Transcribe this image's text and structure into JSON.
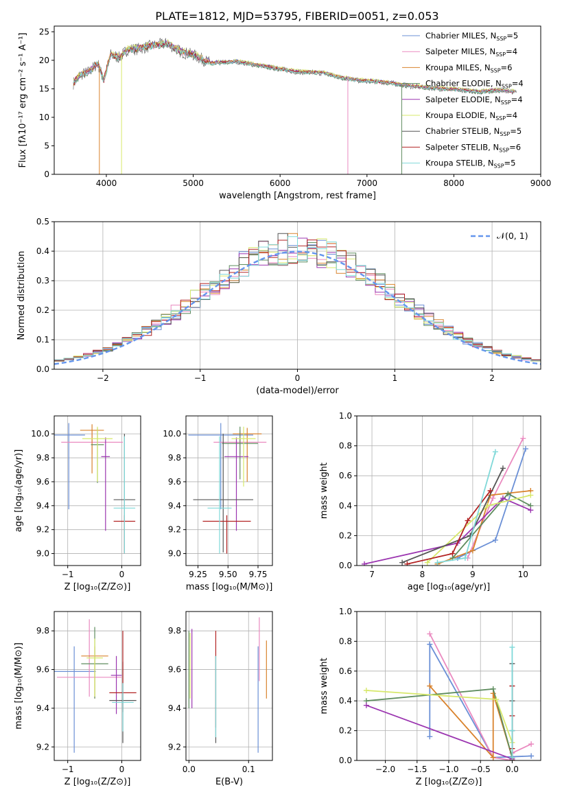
{
  "figure_title": "PLATE=1812, MJD=53795, FIBERID=0051, z=0.053",
  "model_colors": [
    "#6a8fd6",
    "#ea8ac0",
    "#d9822b",
    "#5e8c5e",
    "#9b35b0",
    "#d7e86a",
    "#555555",
    "#b22222",
    "#7fd8d8"
  ],
  "legend_labels": [
    [
      "Chabrier MILES, N",
      "SSP",
      "=5"
    ],
    [
      "Salpeter MILES, N",
      "SSP",
      "=4"
    ],
    [
      "Kroupa MILES, N",
      "SSP",
      "=6"
    ],
    [
      "Chabrier ELODIE, N",
      "SSP",
      "=4"
    ],
    [
      "Salpeter ELODIE, N",
      "SSP",
      "=4"
    ],
    [
      "Kroupa ELODIE, N",
      "SSP",
      "=4"
    ],
    [
      "Chabrier STELIB, N",
      "SSP",
      "=5"
    ],
    [
      "Salpeter STELIB, N",
      "SSP",
      "=6"
    ],
    [
      "Kroupa STELIB, N",
      "SSP",
      "=5"
    ]
  ],
  "chart_data": [
    {
      "id": "spectrum",
      "type": "line",
      "xlabel": "wavelength [Angstrom, rest frame]",
      "ylabel": "Flux [fλ10⁻¹⁷ erg cm⁻² s⁻¹ A⁻¹]",
      "xlim": [
        3400,
        9000
      ],
      "ylim": [
        0,
        26
      ],
      "xticks": [
        4000,
        5000,
        6000,
        7000,
        8000,
        9000
      ],
      "yticks": [
        0,
        5,
        10,
        15,
        20,
        25
      ],
      "grid": false,
      "legend_position": "upper-right",
      "data_x": [
        3620,
        3700,
        3800,
        3900,
        3970,
        4050,
        4150,
        4250,
        4350,
        4500,
        4700,
        4860,
        5000,
        5200,
        5500,
        5800,
        6000,
        6200,
        6500,
        6700,
        6900,
        7100,
        7300,
        7500,
        7700,
        7900,
        8100,
        8300,
        8500,
        8700
      ],
      "data_y": [
        16.0,
        17.5,
        18.0,
        19.5,
        16.5,
        21.0,
        20.5,
        22.0,
        22.0,
        22.5,
        23.0,
        21.5,
        21.0,
        19.5,
        19.8,
        19.0,
        18.5,
        18.0,
        17.8,
        17.0,
        16.5,
        16.3,
        16.0,
        15.5,
        15.2,
        15.0,
        14.8,
        14.5,
        14.8,
        14.5
      ],
      "model_spreads": [
        0.3,
        -0.2,
        0.1,
        -0.4,
        0.2,
        0.5,
        -0.1,
        0.0,
        -0.3
      ]
    },
    {
      "id": "residual-histogram",
      "type": "histogram",
      "xlabel": "(data-model)/error",
      "ylabel": "Normed distribution",
      "xlim": [
        -2.5,
        2.5
      ],
      "ylim": [
        0,
        0.5
      ],
      "xticks": [
        -2,
        -1,
        0,
        1,
        2
      ],
      "yticks": [
        0.0,
        0.1,
        0.2,
        0.3,
        0.4,
        0.5
      ],
      "grid": true,
      "legend": "𝒩(0, 1)",
      "legend_position": "upper-right",
      "bin_width": 0.1,
      "curve": "gaussian mean 0, sigma 1"
    },
    {
      "id": "age-vs-Z",
      "type": "errorbar",
      "xlabel": "Z [log₁₀(Z/Z⊙)]",
      "ylabel": "age  [log₁₀(age/yr)]",
      "xlim": [
        -1.25,
        0.35
      ],
      "ylim": [
        8.9,
        10.15
      ],
      "xticks": [
        -1,
        0
      ],
      "yticks": [
        9.0,
        9.2,
        9.4,
        9.6,
        9.8,
        10.0
      ],
      "grid": true,
      "points": [
        {
          "x": -0.98,
          "y": 9.99,
          "xerr": 0.3,
          "yerr": [
            0.62,
            0.1
          ]
        },
        {
          "x": -0.55,
          "y": 9.93,
          "xerr": 0.57,
          "yerr": [
            0.1,
            0.1
          ]
        },
        {
          "x": -0.55,
          "y": 10.03,
          "xerr": 0.22,
          "yerr": [
            0.36,
            0.05
          ]
        },
        {
          "x": -0.45,
          "y": 9.91,
          "xerr": 0.12,
          "yerr": [
            0.32,
            0.14
          ]
        },
        {
          "x": -0.3,
          "y": 9.81,
          "xerr": 0.08,
          "yerr": [
            0.62,
            0.16
          ]
        },
        {
          "x": -0.45,
          "y": 9.96,
          "xerr": 0.28,
          "yerr": [
            0.36,
            0.1
          ]
        },
        {
          "x": 0.05,
          "y": 9.45,
          "xerr": 0.2,
          "yerr": [
            0.44,
            0.55
          ]
        },
        {
          "x": 0.05,
          "y": 9.27,
          "xerr": 0.2,
          "yerr": [
            0.27,
            0.05
          ]
        },
        {
          "x": 0.05,
          "y": 9.38,
          "xerr": 0.2,
          "yerr": [
            0.38,
            0.6
          ]
        }
      ]
    },
    {
      "id": "age-vs-mass",
      "type": "errorbar",
      "xlabel": "mass [log₁₀(M/M⊙)]",
      "ylabel": "",
      "xlim": [
        9.15,
        9.87
      ],
      "ylim": [
        8.9,
        10.15
      ],
      "xticks": [
        9.25,
        9.5,
        9.75
      ],
      "yticks": [
        9.0,
        9.2,
        9.4,
        9.6,
        9.8,
        10.0
      ],
      "grid": true,
      "points": [
        {
          "x": 9.44,
          "y": 9.99,
          "xerr": 0.27,
          "yerr": [
            0.62,
            0.1
          ]
        },
        {
          "x": 9.6,
          "y": 9.93,
          "xerr": 0.22,
          "yerr": [
            0.1,
            0.1
          ]
        },
        {
          "x": 9.66,
          "y": 10.0,
          "xerr": 0.12,
          "yerr": [
            0.4,
            0.05
          ]
        },
        {
          "x": 9.6,
          "y": 9.92,
          "xerr": 0.15,
          "yerr": [
            0.3,
            0.14
          ]
        },
        {
          "x": 9.57,
          "y": 9.81,
          "xerr": 0.1,
          "yerr": [
            0.62,
            0.16
          ]
        },
        {
          "x": 9.63,
          "y": 9.96,
          "xerr": 0.1,
          "yerr": [
            0.4,
            0.1
          ]
        },
        {
          "x": 9.46,
          "y": 9.45,
          "xerr": 0.25,
          "yerr": [
            0.44,
            0.55
          ]
        },
        {
          "x": 9.49,
          "y": 9.27,
          "xerr": 0.2,
          "yerr": [
            0.27,
            0.05
          ]
        },
        {
          "x": 9.43,
          "y": 9.38,
          "xerr": 0.1,
          "yerr": [
            0.38,
            0.6
          ]
        }
      ]
    },
    {
      "id": "massweight-vs-age",
      "type": "line",
      "xlabel": "age  [log₁₀(age/yr)]",
      "ylabel": "mass weight",
      "xlim": [
        6.7,
        10.35
      ],
      "ylim": [
        0,
        1.0
      ],
      "xticks": [
        7,
        8,
        9,
        10
      ],
      "yticks": [
        0.0,
        0.2,
        0.4,
        0.6,
        0.8,
        1.0
      ],
      "grid": true,
      "series": [
        {
          "x": [
            8.7,
            9.45,
            10.05
          ],
          "y": [
            0.05,
            0.17,
            0.78
          ]
        },
        {
          "x": [
            8.9,
            9.4,
            10.0
          ],
          "y": [
            0.05,
            0.45,
            0.85
          ]
        },
        {
          "x": [
            8.3,
            9.0,
            9.35,
            10.15
          ],
          "y": [
            0.01,
            0.1,
            0.47,
            0.5
          ]
        },
        {
          "x": [
            8.6,
            9.7,
            10.15
          ],
          "y": [
            0.05,
            0.48,
            0.4
          ]
        },
        {
          "x": [
            6.85,
            8.7,
            9.6,
            10.15
          ],
          "y": [
            0.01,
            0.15,
            0.45,
            0.37
          ]
        },
        {
          "x": [
            8.1,
            9.3,
            10.15
          ],
          "y": [
            0.02,
            0.4,
            0.47
          ]
        },
        {
          "x": [
            7.6,
            8.95,
            9.6
          ],
          "y": [
            0.02,
            0.2,
            0.65
          ]
        },
        {
          "x": [
            7.7,
            8.6,
            8.9,
            9.35
          ],
          "y": [
            0.01,
            0.08,
            0.3,
            0.5
          ]
        },
        {
          "x": [
            8.3,
            8.85,
            9.45
          ],
          "y": [
            0.02,
            0.05,
            0.76
          ]
        }
      ]
    },
    {
      "id": "mass-vs-Z",
      "type": "errorbar",
      "xlabel": "Z [log₁₀(Z/Z⊙)]",
      "ylabel": "mass [log₁₀(M/M⊙)]",
      "xlim": [
        -1.25,
        0.35
      ],
      "ylim": [
        9.13,
        9.9
      ],
      "xticks": [
        -1,
        0
      ],
      "yticks": [
        9.2,
        9.4,
        9.6,
        9.8
      ],
      "grid": true,
      "points": [
        {
          "x": -0.88,
          "y": 9.59,
          "xerr": 0.4,
          "yerr": [
            0.42,
            0.13
          ]
        },
        {
          "x": -0.6,
          "y": 9.56,
          "xerr": 0.6,
          "yerr": [
            0.1,
            0.3
          ]
        },
        {
          "x": -0.5,
          "y": 9.67,
          "xerr": 0.25,
          "yerr": [
            0.22,
            0.05
          ]
        },
        {
          "x": -0.5,
          "y": 9.63,
          "xerr": 0.25,
          "yerr": [
            0.18,
            0.19
          ]
        },
        {
          "x": -0.1,
          "y": 9.57,
          "xerr": 0.1,
          "yerr": [
            0.2,
            0.1
          ]
        },
        {
          "x": -0.5,
          "y": 9.66,
          "xerr": 0.15,
          "yerr": [
            0.2,
            0.1
          ]
        },
        {
          "x": 0.02,
          "y": 9.44,
          "xerr": 0.25,
          "yerr": [
            0.22,
            0.2
          ]
        },
        {
          "x": 0.02,
          "y": 9.48,
          "xerr": 0.25,
          "yerr": [
            0.1,
            0.32
          ]
        },
        {
          "x": 0.02,
          "y": 9.43,
          "xerr": 0.2,
          "yerr": [
            0.15,
            0.1
          ]
        }
      ]
    },
    {
      "id": "mass-vs-EBV",
      "type": "errorbar",
      "xlabel": "E(B-V)",
      "ylabel": "",
      "xlim": [
        -0.005,
        0.14
      ],
      "ylim": [
        9.13,
        9.9
      ],
      "xticks": [
        0.0,
        0.1
      ],
      "yticks": [
        9.2,
        9.4,
        9.6,
        9.8
      ],
      "grid": true,
      "points": [
        {
          "x": 0.116,
          "y": 9.45,
          "yerr": [
            0.28,
            0.27
          ]
        },
        {
          "x": 0.118,
          "y": 9.7,
          "yerr": [
            0.16,
            0.17
          ]
        },
        {
          "x": 0.13,
          "y": 9.6,
          "yerr": [
            0.15,
            0.15
          ]
        },
        {
          "x": 0.0,
          "y": 9.6,
          "yerr": [
            0.2,
            0.2
          ]
        },
        {
          "x": 0.005,
          "y": 9.6,
          "yerr": [
            0.2,
            0.21
          ]
        },
        {
          "x": 0.002,
          "y": 9.62,
          "yerr": [
            0.17,
            0.17
          ]
        },
        {
          "x": 0.045,
          "y": 9.45,
          "yerr": [
            0.23,
            0.22
          ]
        },
        {
          "x": 0.045,
          "y": 9.55,
          "yerr": [
            0.25,
            0.25
          ]
        },
        {
          "x": 0.045,
          "y": 9.45,
          "yerr": [
            0.2,
            0.22
          ]
        }
      ]
    },
    {
      "id": "massweight-vs-Z",
      "type": "line",
      "xlabel": "Z [log₁₀(Z/Z⊙)]",
      "ylabel": "mass weight",
      "xlim": [
        -2.45,
        0.45
      ],
      "ylim": [
        0,
        1.0
      ],
      "xticks": [
        -2.0,
        -1.5,
        -1.0,
        -0.5,
        0.0
      ],
      "yticks": [
        0.0,
        0.2,
        0.4,
        0.6,
        0.8,
        1.0
      ],
      "grid": true,
      "series": [
        {
          "x": [
            -1.3,
            -1.3,
            -0.3,
            0.3
          ],
          "y": [
            0.16,
            0.78,
            0.02,
            0.03
          ]
        },
        {
          "x": [
            -1.3,
            -0.3,
            0.0,
            0.0,
            0.3
          ],
          "y": [
            0.85,
            0.02,
            0.0,
            0.05,
            0.11
          ]
        },
        {
          "x": [
            -1.3,
            -0.3,
            -0.3,
            0.0
          ],
          "y": [
            0.5,
            0.02,
            0.45,
            0.02
          ]
        },
        {
          "x": [
            -2.3,
            -0.3,
            0.0
          ],
          "y": [
            0.4,
            0.48,
            0.02
          ]
        },
        {
          "x": [
            -2.3,
            0.0
          ],
          "y": [
            0.37,
            0.01
          ]
        },
        {
          "x": [
            -2.3,
            -0.25,
            0.0
          ],
          "y": [
            0.47,
            0.41,
            0.12
          ]
        },
        {
          "x": [
            0.0,
            0.0,
            0.0,
            0.0
          ],
          "y": [
            0.65,
            0.4,
            0.2,
            0.0
          ]
        },
        {
          "x": [
            0.0,
            0.0,
            0.0,
            0.0
          ],
          "y": [
            0.5,
            0.3,
            0.08,
            0.0
          ]
        },
        {
          "x": [
            0.0,
            0.0,
            0.0
          ],
          "y": [
            0.76,
            0.2,
            0.02
          ]
        }
      ]
    }
  ]
}
